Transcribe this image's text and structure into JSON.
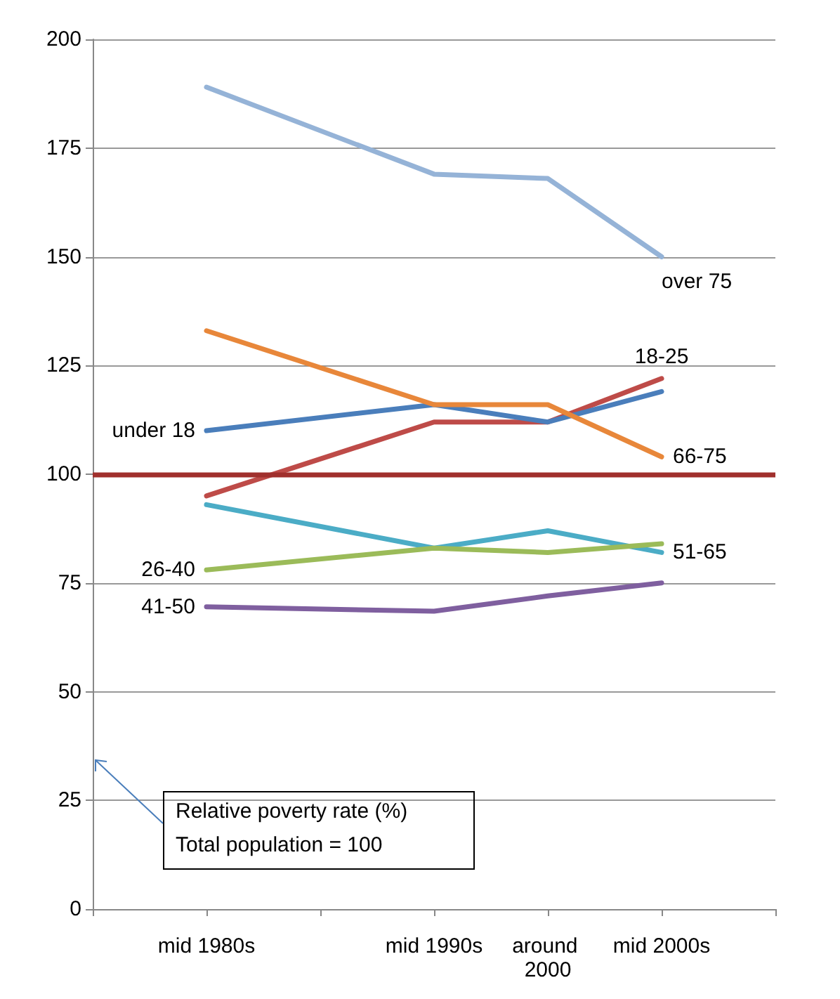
{
  "chart_data": {
    "type": "line",
    "categories": [
      null,
      "mid 1980s",
      null,
      "mid 1990s",
      "around 2000",
      "mid 2000s",
      null
    ],
    "series": [
      {
        "name": "over 75",
        "color": "#95b3d7",
        "values": [
          null,
          189,
          null,
          169,
          168,
          150,
          null
        ]
      },
      {
        "name": "18-25",
        "color": "#be4b48",
        "values": [
          null,
          95,
          null,
          112,
          112,
          122,
          null
        ]
      },
      {
        "name": "under 18",
        "color": "#4a7ebb",
        "values": [
          null,
          110,
          null,
          116,
          112,
          119,
          null
        ]
      },
      {
        "name": "66-75",
        "color": "#e8873a",
        "values": [
          null,
          133,
          null,
          116,
          116,
          104,
          null
        ]
      },
      {
        "name": "51-65",
        "color": "#4bacc6",
        "values": [
          null,
          93,
          null,
          83,
          87,
          82,
          null
        ]
      },
      {
        "name": "26-40",
        "color": "#9bbb59",
        "values": [
          null,
          78,
          null,
          83,
          82,
          84,
          null
        ]
      },
      {
        "name": "41-50",
        "color": "#7f5f9f",
        "values": [
          null,
          69.5,
          null,
          68.5,
          72,
          75,
          null
        ]
      }
    ],
    "ylim": [
      0,
      200
    ],
    "yticks": [
      0,
      25,
      50,
      75,
      100,
      125,
      150,
      175,
      200
    ],
    "grid": "y",
    "legend": false,
    "marker": "none",
    "line_style": "solid",
    "ref_lines": [
      {
        "axis": "y",
        "value": 100,
        "label": null,
        "color": "#a0302d"
      }
    ],
    "annotations": [
      "Relative poverty rate (%)",
      "Total population = 100"
    ]
  }
}
